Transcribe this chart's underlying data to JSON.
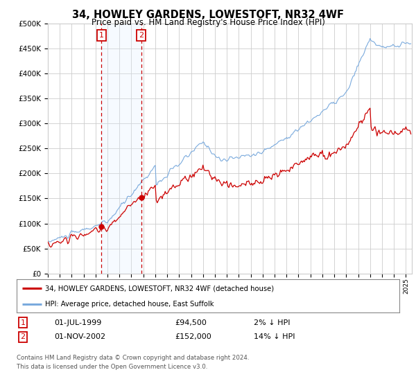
{
  "title": "34, HOWLEY GARDENS, LOWESTOFT, NR32 4WF",
  "subtitle": "Price paid vs. HM Land Registry's House Price Index (HPI)",
  "sale1_date_label": "01-JUL-1999",
  "sale1_price": 94500,
  "sale1_pct": "2% ↓ HPI",
  "sale2_date_label": "01-NOV-2002",
  "sale2_price": 152000,
  "sale2_pct": "14% ↓ HPI",
  "sale1_year": 1999.5,
  "sale2_year": 2002.83,
  "legend_property": "34, HOWLEY GARDENS, LOWESTOFT, NR32 4WF (detached house)",
  "legend_hpi": "HPI: Average price, detached house, East Suffolk",
  "footer": "Contains HM Land Registry data © Crown copyright and database right 2024.\nThis data is licensed under the Open Government Licence v3.0.",
  "ylim": [
    0,
    500000
  ],
  "xlim_start": 1995,
  "xlim_end": 2025.5,
  "line_color_property": "#cc0000",
  "line_color_hpi": "#7aaadd",
  "shade_color": "#ddeeff",
  "vline_color": "#cc0000",
  "box_color": "#cc0000",
  "grid_color": "#cccccc",
  "background_color": "#ffffff"
}
